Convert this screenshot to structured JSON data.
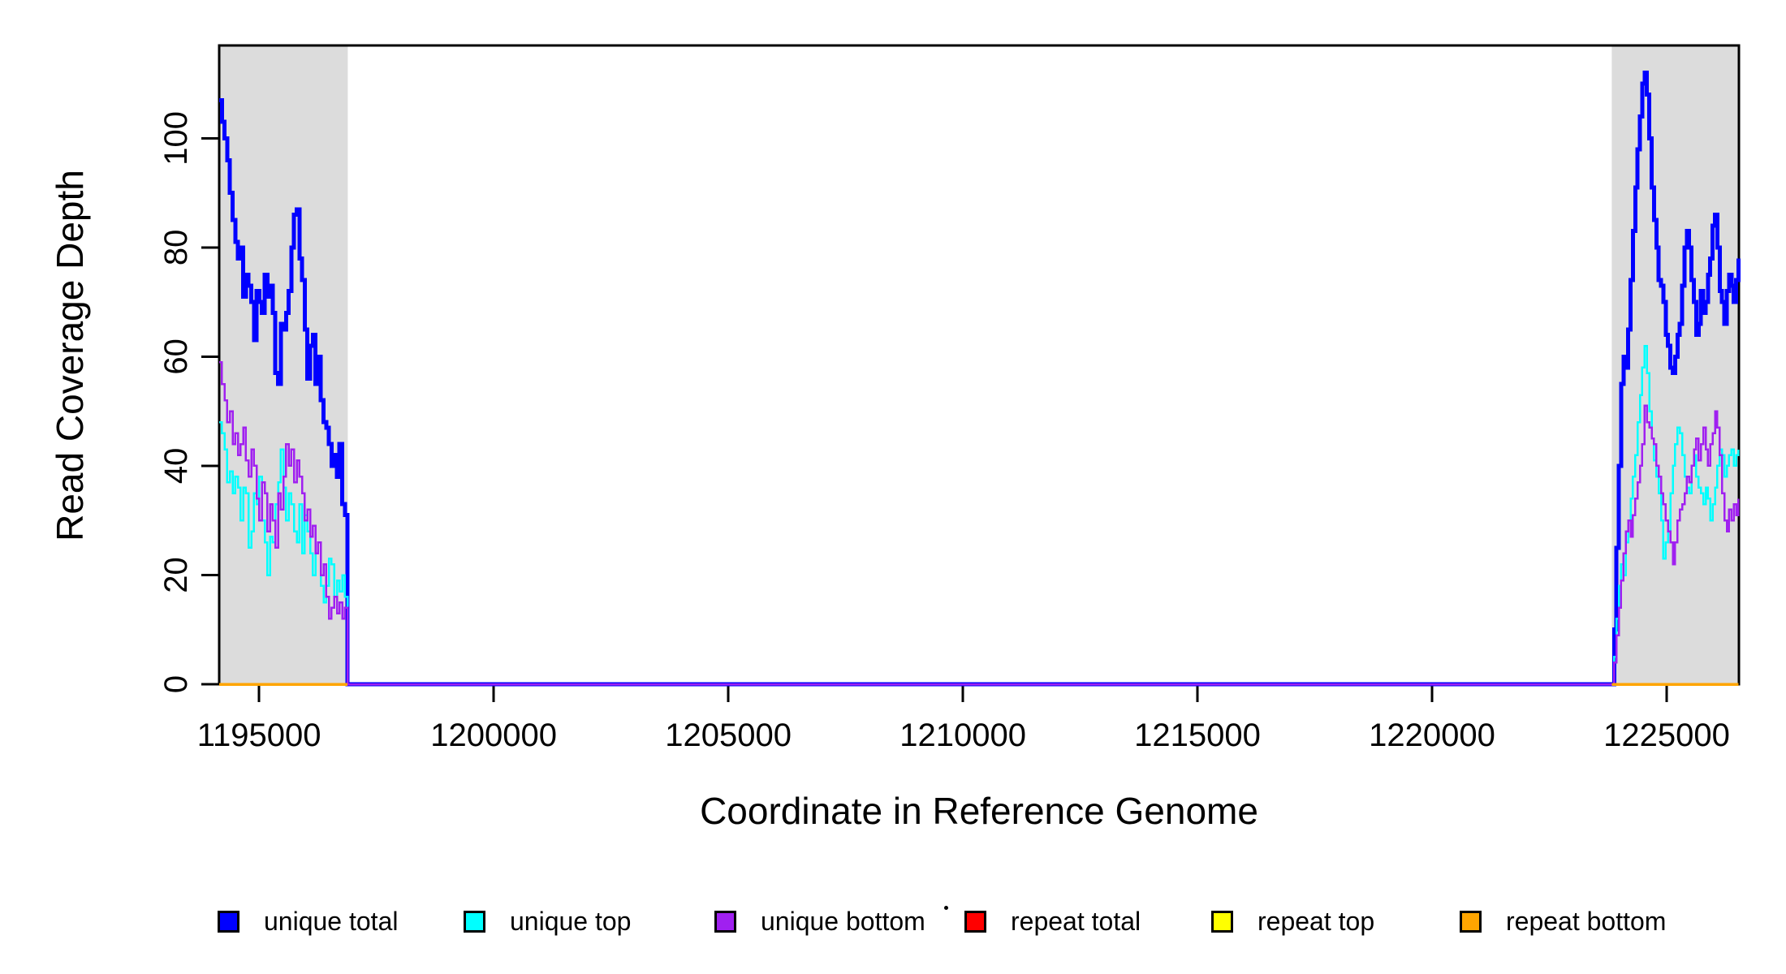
{
  "figure": {
    "background": "#FFFFFF"
  },
  "chart_data": {
    "type": "line-step",
    "title": "",
    "xlabel": "Coordinate in Reference Genome",
    "ylabel": "Read Coverage Depth",
    "xlim": [
      1194150,
      1226540
    ],
    "ylim": [
      0,
      117
    ],
    "xticks": [
      1195000,
      1200000,
      1205000,
      1210000,
      1215000,
      1220000,
      1225000
    ],
    "yticks": [
      0,
      20,
      40,
      60,
      80,
      100
    ],
    "grid": false,
    "legend_position": "bottom",
    "axis_color": "#000000",
    "shade_color": "#DCDCDC",
    "shaded_regions": [
      {
        "x0": 1194150,
        "x1": 1196890
      },
      {
        "x0": 1223830,
        "x1": 1226540
      }
    ],
    "series": [
      {
        "key": "unique-total",
        "name": "unique total",
        "color": "#0000FF",
        "width": 5,
        "connect": true,
        "segments": [
          {
            "x0": 1194150,
            "dx": 57,
            "values": [
              107,
              103,
              100,
              96,
              90,
              85,
              81,
              78,
              80,
              71,
              75,
              73,
              70,
              63,
              72,
              70,
              68,
              75,
              71,
              73,
              68,
              57,
              55,
              66,
              65,
              68,
              72,
              80,
              86,
              87,
              78,
              74,
              65,
              56,
              62,
              64,
              55,
              60,
              52,
              48,
              47,
              44,
              40,
              42,
              38,
              44,
              33,
              31,
              0
            ]
          },
          {
            "x0": 1223830,
            "dx": 50,
            "values": [
              0,
              10,
              25,
              40,
              55,
              60,
              58,
              65,
              74,
              83,
              91,
              98,
              104,
              110,
              112,
              108,
              100,
              91,
              85,
              80,
              74,
              73,
              70,
              64,
              62,
              58,
              57,
              60,
              64,
              66,
              73,
              80,
              83,
              80,
              74,
              70,
              64,
              66,
              72,
              68,
              70,
              75,
              78,
              84,
              86,
              80,
              72,
              70,
              66,
              72,
              75,
              73,
              70,
              74,
              78
            ]
          }
        ]
      },
      {
        "key": "unique-top",
        "name": "unique top",
        "color": "#00FFFF",
        "width": 2.5,
        "connect": true,
        "segments": [
          {
            "x0": 1194150,
            "dx": 57,
            "values": [
              48,
              46,
              43,
              37,
              39,
              35,
              38,
              36,
              30,
              36,
              35,
              25,
              28,
              35,
              33,
              38,
              30,
              26,
              20,
              27,
              26,
              33,
              37,
              43,
              36,
              30,
              35,
              33,
              28,
              26,
              33,
              24,
              31,
              28,
              24,
              20,
              24,
              26,
              18,
              15,
              18,
              23,
              22,
              16,
              19,
              17,
              20,
              16,
              0
            ]
          },
          {
            "x0": 1223830,
            "dx": 50,
            "values": [
              0,
              5,
              12,
              18,
              22,
              20,
              26,
              30,
              34,
              38,
              42,
              48,
              53,
              58,
              62,
              57,
              50,
              45,
              41,
              38,
              35,
              30,
              23,
              26,
              28,
              35,
              40,
              44,
              47,
              46,
              42,
              38,
              36,
              35,
              40,
              42,
              38,
              36,
              35,
              33,
              36,
              34,
              30,
              33,
              36,
              40,
              43,
              42,
              38,
              40,
              42,
              43,
              40,
              42,
              43
            ]
          }
        ]
      },
      {
        "key": "unique-bottom",
        "name": "unique bottom",
        "color": "#A020F0",
        "width": 2.5,
        "connect": true,
        "segments": [
          {
            "x0": 1194150,
            "dx": 57,
            "values": [
              59,
              55,
              52,
              48,
              50,
              44,
              46,
              42,
              44,
              47,
              41,
              38,
              43,
              40,
              34,
              30,
              37,
              35,
              28,
              33,
              30,
              25,
              35,
              32,
              38,
              44,
              40,
              43,
              37,
              41,
              38,
              35,
              30,
              32,
              27,
              29,
              24,
              26,
              20,
              22,
              16,
              12,
              14,
              16,
              13,
              15,
              12,
              14,
              0
            ]
          },
          {
            "x0": 1223830,
            "dx": 50,
            "values": [
              0,
              4,
              9,
              14,
              19,
              24,
              28,
              30,
              27,
              31,
              34,
              37,
              40,
              44,
              51,
              48,
              47,
              45,
              44,
              40,
              38,
              35,
              33,
              30,
              28,
              26,
              22,
              26,
              30,
              32,
              33,
              35,
              38,
              37,
              40,
              43,
              45,
              41,
              44,
              47,
              43,
              40,
              44,
              46,
              50,
              47,
              42,
              35,
              30,
              28,
              32,
              30,
              33,
              31,
              34
            ]
          }
        ]
      },
      {
        "key": "repeat-total",
        "name": "repeat total",
        "color": "#FF0000",
        "width": 2.5,
        "connect": false,
        "segments": [
          {
            "x0": 1194150,
            "dx": 2736,
            "values": [
              0,
              0
            ]
          },
          {
            "x0": 1223830,
            "dx": 2700,
            "values": [
              0,
              0
            ]
          }
        ]
      },
      {
        "key": "repeat-top",
        "name": "repeat top",
        "color": "#FFFF00",
        "width": 2.5,
        "connect": false,
        "segments": [
          {
            "x0": 1194150,
            "dx": 2736,
            "values": [
              0,
              0
            ]
          },
          {
            "x0": 1223830,
            "dx": 2700,
            "values": [
              0,
              0
            ]
          }
        ]
      },
      {
        "key": "repeat-bottom",
        "name": "repeat bottom",
        "color": "#FFA500",
        "width": 3.5,
        "connect": false,
        "segments": [
          {
            "x0": 1194150,
            "dx": 2736,
            "values": [
              0,
              0
            ]
          },
          {
            "x0": 1223830,
            "dx": 2700,
            "values": [
              0,
              0
            ]
          }
        ]
      }
    ]
  }
}
